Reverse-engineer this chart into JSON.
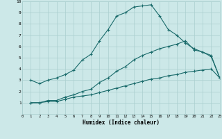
{
  "xlabel": "Humidex (Indice chaleur)",
  "bg_color": "#cce8e8",
  "grid_color": "#aacfcf",
  "line_color": "#1a6b6b",
  "xlim": [
    0,
    23
  ],
  "ylim": [
    0,
    10
  ],
  "xticks": [
    0,
    1,
    2,
    3,
    4,
    5,
    6,
    7,
    8,
    9,
    10,
    11,
    12,
    13,
    14,
    15,
    16,
    17,
    18,
    19,
    20,
    21,
    22,
    23
  ],
  "yticks": [
    1,
    2,
    3,
    4,
    5,
    6,
    7,
    8,
    9,
    10
  ],
  "curve1_x": [
    1,
    2,
    3,
    4,
    5,
    6,
    7,
    8,
    9,
    10,
    11,
    12,
    13,
    14,
    15,
    16,
    17,
    18,
    19,
    20,
    21,
    22,
    23
  ],
  "curve1_y": [
    3.0,
    2.7,
    3.0,
    3.2,
    3.5,
    3.9,
    4.8,
    5.3,
    6.5,
    7.5,
    8.7,
    9.0,
    9.5,
    9.6,
    9.7,
    8.7,
    7.5,
    7.0,
    6.3,
    5.8,
    5.5,
    5.1,
    3.2
  ],
  "curve2_x": [
    1,
    2,
    3,
    4,
    5,
    6,
    7,
    8,
    9,
    10,
    11,
    12,
    13,
    14,
    15,
    16,
    17,
    18,
    19,
    20,
    21,
    22,
    23
  ],
  "curve2_y": [
    1.0,
    1.0,
    1.2,
    1.2,
    1.5,
    1.7,
    2.0,
    2.2,
    2.8,
    3.2,
    3.8,
    4.2,
    4.8,
    5.2,
    5.5,
    5.8,
    6.0,
    6.2,
    6.5,
    5.7,
    5.5,
    5.2,
    3.2
  ],
  "curve3_x": [
    1,
    2,
    3,
    4,
    5,
    6,
    7,
    8,
    9,
    10,
    11,
    12,
    13,
    14,
    15,
    16,
    17,
    18,
    19,
    20,
    21,
    22,
    23
  ],
  "curve3_y": [
    1.0,
    1.0,
    1.1,
    1.1,
    1.3,
    1.5,
    1.6,
    1.7,
    1.9,
    2.1,
    2.3,
    2.5,
    2.7,
    2.9,
    3.1,
    3.2,
    3.4,
    3.5,
    3.7,
    3.8,
    3.9,
    4.0,
    3.2
  ]
}
